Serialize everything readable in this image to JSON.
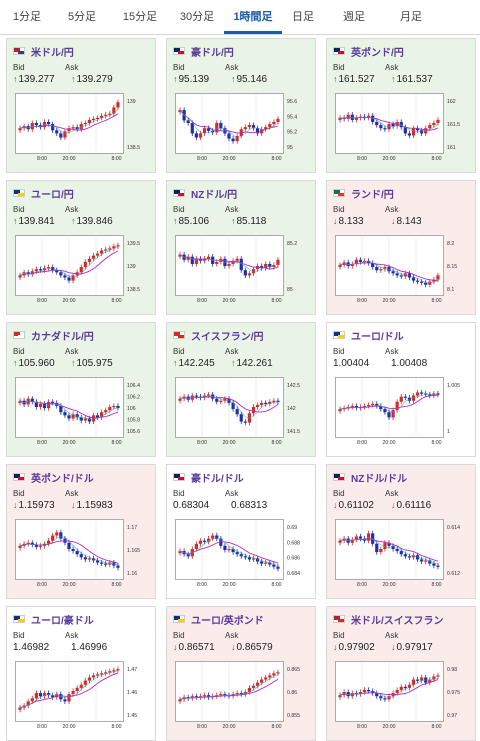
{
  "tabs": [
    "1分足",
    "5分足",
    "15分足",
    "30分足",
    "1時間足",
    "日足",
    "週足",
    "月足"
  ],
  "active_tab": 4,
  "colors": {
    "up": "#d42a2a",
    "down": "#1f2fa8",
    "ma": "#c023c0",
    "ma2": "#1fb0b0",
    "accent": "#1a5aa8"
  },
  "bid_label": "Bid",
  "ask_label": "Ask",
  "cards": [
    {
      "pair": "米ドル/円",
      "state": "up",
      "bid": "139.277",
      "ask": "139.279",
      "dir": "up",
      "flag": [
        "#b22234",
        "#3c3b6e"
      ],
      "ticks": [
        "139",
        "138.5"
      ],
      "xticks": [
        "8:00",
        "20:00",
        "8:00"
      ],
      "series": [
        0.4,
        0.44,
        0.38,
        0.5,
        0.46,
        0.42,
        0.52,
        0.48,
        0.36,
        0.3,
        0.22,
        0.34,
        0.4,
        0.42,
        0.38,
        0.48,
        0.5,
        0.56,
        0.58,
        0.6,
        0.64,
        0.66,
        0.68,
        0.8,
        0.9
      ]
    },
    {
      "pair": "豪ドル/円",
      "state": "up",
      "bid": "95.139",
      "ask": "95.146",
      "dir": "up",
      "flag": [
        "#012169",
        "#c8102e"
      ],
      "ticks": [
        "95.6",
        "95.4",
        "95.2",
        "95"
      ],
      "xticks": [
        "8:00",
        "20:00",
        "8:00"
      ],
      "series": [
        0.75,
        0.55,
        0.5,
        0.3,
        0.22,
        0.3,
        0.4,
        0.35,
        0.32,
        0.5,
        0.4,
        0.3,
        0.2,
        0.15,
        0.25,
        0.38,
        0.42,
        0.46,
        0.4,
        0.3,
        0.38,
        0.42,
        0.48,
        0.52,
        0.58
      ]
    },
    {
      "pair": "英ポンド/円",
      "state": "up",
      "bid": "161.527",
      "ask": "161.537",
      "dir": "up",
      "flag": [
        "#012169",
        "#c8102e"
      ],
      "ticks": [
        "162",
        "161.5",
        "161"
      ],
      "xticks": [
        "8:00",
        "20:00",
        "8:00"
      ],
      "series": [
        0.6,
        0.58,
        0.66,
        0.56,
        0.6,
        0.62,
        0.6,
        0.64,
        0.52,
        0.46,
        0.4,
        0.38,
        0.48,
        0.44,
        0.52,
        0.42,
        0.3,
        0.26,
        0.4,
        0.36,
        0.3,
        0.4,
        0.46,
        0.5,
        0.56
      ]
    },
    {
      "pair": "ユーロ/円",
      "state": "up",
      "bid": "139.841",
      "ask": "139.846",
      "dir": "up",
      "flag": [
        "#003399",
        "#ffcc00"
      ],
      "ticks": [
        "139.5",
        "139",
        "138.5"
      ],
      "xticks": [
        "8:00",
        "20:00",
        "8:00"
      ],
      "series": [
        0.3,
        0.36,
        0.32,
        0.38,
        0.42,
        0.4,
        0.44,
        0.46,
        0.4,
        0.36,
        0.3,
        0.26,
        0.2,
        0.3,
        0.36,
        0.46,
        0.56,
        0.62,
        0.68,
        0.72,
        0.78,
        0.8,
        0.82,
        0.86,
        0.88
      ]
    },
    {
      "pair": "NZドル/円",
      "state": "up",
      "bid": "85.106",
      "ask": "85.118",
      "dir": "up",
      "flag": [
        "#012169",
        "#c8102e"
      ],
      "ticks": [
        "85.2",
        "85"
      ],
      "xticks": [
        "8:00",
        "20:00",
        "8:00"
      ],
      "series": [
        0.7,
        0.6,
        0.66,
        0.52,
        0.62,
        0.58,
        0.62,
        0.66,
        0.52,
        0.56,
        0.62,
        0.48,
        0.52,
        0.58,
        0.62,
        0.4,
        0.3,
        0.34,
        0.42,
        0.48,
        0.44,
        0.52,
        0.46,
        0.5,
        0.6
      ]
    },
    {
      "pair": "ランド/円",
      "state": "down",
      "bid": "8.133",
      "ask": "8.143",
      "dir": "down",
      "flag": [
        "#007a4d",
        "#de3831"
      ],
      "ticks": [
        "8.2",
        "8.15",
        "8.1"
      ],
      "xticks": [
        "8:00",
        "20:00",
        "8:00"
      ],
      "series": [
        0.5,
        0.55,
        0.48,
        0.52,
        0.6,
        0.56,
        0.58,
        0.54,
        0.46,
        0.4,
        0.42,
        0.46,
        0.38,
        0.34,
        0.3,
        0.28,
        0.34,
        0.26,
        0.2,
        0.18,
        0.16,
        0.12,
        0.18,
        0.22,
        0.3
      ]
    },
    {
      "pair": "カナダドル/円",
      "state": "up",
      "bid": "105.960",
      "ask": "105.975",
      "dir": "up",
      "flag": [
        "#d52b1e",
        "#ffffff"
      ],
      "ticks": [
        "106.4",
        "106.2",
        "106",
        "105.8",
        "105.6"
      ],
      "xticks": [
        "8:00",
        "20:00",
        "8:00"
      ],
      "series": [
        0.62,
        0.55,
        0.66,
        0.6,
        0.5,
        0.56,
        0.48,
        0.6,
        0.58,
        0.52,
        0.4,
        0.34,
        0.28,
        0.36,
        0.3,
        0.24,
        0.28,
        0.22,
        0.34,
        0.3,
        0.4,
        0.44,
        0.5,
        0.52,
        0.48
      ]
    },
    {
      "pair": "スイスフラン/円",
      "state": "up",
      "bid": "142.245",
      "ask": "142.261",
      "dir": "up",
      "flag": [
        "#d52b1e",
        "#d52b1e"
      ],
      "ticks": [
        "142.5",
        "142",
        "141.5"
      ],
      "xticks": [
        "8:00",
        "20:00",
        "8:00"
      ],
      "series": [
        0.66,
        0.7,
        0.64,
        0.72,
        0.7,
        0.68,
        0.72,
        0.74,
        0.66,
        0.6,
        0.62,
        0.66,
        0.58,
        0.46,
        0.36,
        0.22,
        0.2,
        0.38,
        0.5,
        0.54,
        0.58,
        0.56,
        0.6,
        0.62,
        0.6
      ]
    },
    {
      "pair": "ユーロ/ドル",
      "state": "flat",
      "bid": "1.00404",
      "ask": "1.00408",
      "dir": "none",
      "flag": [
        "#003399",
        "#ffcc00"
      ],
      "ticks": [
        "1.005",
        "1"
      ],
      "xticks": [
        "8:00",
        "20:00",
        "8:00"
      ],
      "series": [
        0.46,
        0.48,
        0.5,
        0.52,
        0.48,
        0.5,
        0.52,
        0.54,
        0.56,
        0.52,
        0.46,
        0.4,
        0.3,
        0.44,
        0.6,
        0.7,
        0.68,
        0.62,
        0.72,
        0.78,
        0.76,
        0.74,
        0.72,
        0.76,
        0.74
      ]
    },
    {
      "pair": "英ポンド/ドル",
      "state": "down",
      "bid": "1.15973",
      "ask": "1.15983",
      "dir": "down",
      "flag": [
        "#012169",
        "#c8102e"
      ],
      "ticks": [
        "1.17",
        "1.165",
        "1.16"
      ],
      "xticks": [
        "8:00",
        "20:00",
        "8:00"
      ],
      "series": [
        0.56,
        0.6,
        0.62,
        0.58,
        0.54,
        0.56,
        0.6,
        0.66,
        0.76,
        0.82,
        0.7,
        0.62,
        0.5,
        0.46,
        0.4,
        0.34,
        0.3,
        0.32,
        0.28,
        0.24,
        0.22,
        0.2,
        0.24,
        0.18,
        0.14
      ]
    },
    {
      "pair": "豪ドル/ドル",
      "state": "flat",
      "bid": "0.68304",
      "ask": "0.68313",
      "dir": "none",
      "flag": [
        "#012169",
        "#c8102e"
      ],
      "ticks": [
        "0.69",
        "0.688",
        "0.686",
        "0.684"
      ],
      "xticks": [
        "8:00",
        "20:00",
        "8:00"
      ],
      "series": [
        0.46,
        0.4,
        0.36,
        0.5,
        0.6,
        0.66,
        0.64,
        0.7,
        0.76,
        0.7,
        0.56,
        0.48,
        0.5,
        0.44,
        0.4,
        0.36,
        0.34,
        0.3,
        0.32,
        0.26,
        0.22,
        0.24,
        0.2,
        0.16,
        0.12
      ]
    },
    {
      "pair": "NZドル/ドル",
      "state": "down",
      "bid": "0.61102",
      "ask": "0.61116",
      "dir": "down",
      "flag": [
        "#012169",
        "#c8102e"
      ],
      "ticks": [
        "0.614",
        "0.612"
      ],
      "xticks": [
        "8:00",
        "20:00",
        "8:00"
      ],
      "series": [
        0.66,
        0.7,
        0.62,
        0.68,
        0.74,
        0.7,
        0.66,
        0.8,
        0.6,
        0.44,
        0.5,
        0.62,
        0.56,
        0.5,
        0.46,
        0.4,
        0.36,
        0.34,
        0.38,
        0.3,
        0.26,
        0.28,
        0.22,
        0.18,
        0.16
      ]
    },
    {
      "pair": "ユーロ/豪ドル",
      "state": "flat",
      "bid": "1.46982",
      "ask": "1.46996",
      "dir": "none",
      "flag": [
        "#003399",
        "#ffcc00"
      ],
      "ticks": [
        "1.47",
        "1.46",
        "1.45"
      ],
      "xticks": [
        "8:00",
        "20:00",
        "8:00"
      ],
      "series": [
        0.18,
        0.22,
        0.3,
        0.36,
        0.46,
        0.4,
        0.46,
        0.42,
        0.38,
        0.44,
        0.34,
        0.3,
        0.44,
        0.5,
        0.56,
        0.62,
        0.7,
        0.76,
        0.8,
        0.82,
        0.84,
        0.86,
        0.88,
        0.9,
        0.92
      ]
    },
    {
      "pair": "ユーロ/英ポンド",
      "state": "down",
      "bid": "0.86571",
      "ask": "0.86579",
      "dir": "down",
      "flag": [
        "#003399",
        "#ffcc00"
      ],
      "ticks": [
        "0.865",
        "0.86",
        "0.855"
      ],
      "xticks": [
        "8:00",
        "20:00",
        "8:00"
      ],
      "series": [
        0.34,
        0.38,
        0.36,
        0.4,
        0.38,
        0.4,
        0.42,
        0.38,
        0.4,
        0.42,
        0.44,
        0.42,
        0.4,
        0.44,
        0.46,
        0.44,
        0.48,
        0.56,
        0.6,
        0.66,
        0.72,
        0.76,
        0.8,
        0.84,
        0.86
      ]
    },
    {
      "pair": "米ドル/スイスフラン",
      "state": "down",
      "bid": "0.97902",
      "ask": "0.97917",
      "dir": "down",
      "flag": [
        "#b22234",
        "#d52b1e"
      ],
      "ticks": [
        "0.98",
        "0.975",
        "0.97"
      ],
      "xticks": [
        "8:00",
        "20:00",
        "8:00"
      ],
      "series": [
        0.42,
        0.48,
        0.4,
        0.46,
        0.44,
        0.48,
        0.52,
        0.5,
        0.46,
        0.4,
        0.36,
        0.34,
        0.4,
        0.46,
        0.52,
        0.58,
        0.56,
        0.62,
        0.72,
        0.7,
        0.76,
        0.66,
        0.72,
        0.78,
        0.8
      ]
    }
  ]
}
